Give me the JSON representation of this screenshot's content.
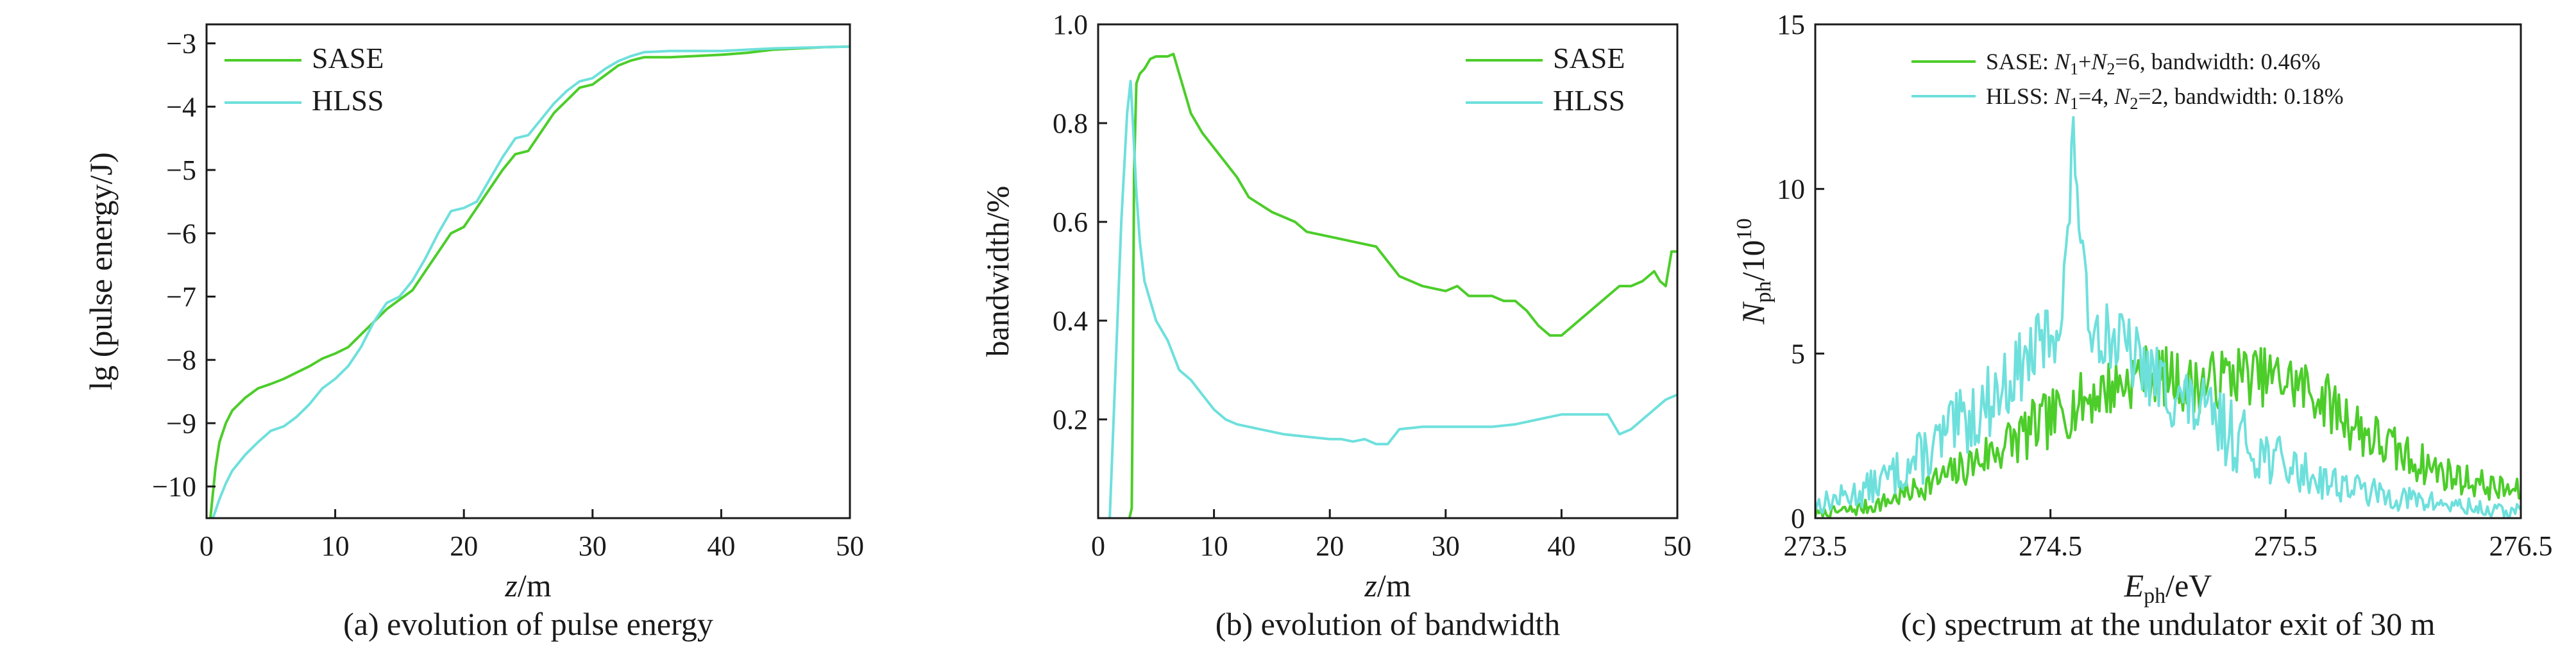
{
  "colors": {
    "sase": "#4ccd2a",
    "hlss": "#6ee0dc",
    "axis": "#1a1a1a"
  },
  "chart_data": [
    {
      "type": "line",
      "caption": "(a) evolution of pulse energy",
      "xlabel_italic": "z",
      "xlabel_unit": "/m",
      "ylabel": "lg (pulse energy/J)",
      "xlim": [
        0,
        50
      ],
      "ylim": [
        -10.5,
        -2.7
      ],
      "xticks": [
        0,
        10,
        20,
        30,
        40,
        50
      ],
      "yticks": [
        -10,
        -9,
        -8,
        -7,
        -6,
        -5,
        -4,
        -3
      ],
      "yticklabels": [
        "−10",
        "−9",
        "−8",
        "−7",
        "−6",
        "−5",
        "−4",
        "−3"
      ],
      "legend_position": "top-left",
      "series": [
        {
          "name": "SASE",
          "color": "sase",
          "x": [
            0.3,
            0.7,
            1,
            1.5,
            2,
            3,
            4,
            5,
            6,
            7,
            8,
            9,
            10,
            11,
            12,
            13,
            14,
            15,
            16,
            17,
            18,
            19,
            20,
            21,
            22,
            23,
            24,
            25,
            26,
            27,
            28,
            29,
            30,
            31,
            32,
            33,
            34,
            35,
            36,
            38,
            40,
            42,
            44,
            46,
            48,
            50
          ],
          "y": [
            -10.5,
            -9.7,
            -9.3,
            -9.0,
            -8.8,
            -8.6,
            -8.45,
            -8.38,
            -8.3,
            -8.2,
            -8.1,
            -7.98,
            -7.9,
            -7.8,
            -7.6,
            -7.4,
            -7.2,
            -7.05,
            -6.9,
            -6.6,
            -6.3,
            -6.0,
            -5.9,
            -5.6,
            -5.3,
            -5.0,
            -4.75,
            -4.7,
            -4.4,
            -4.1,
            -3.9,
            -3.7,
            -3.65,
            -3.5,
            -3.35,
            -3.27,
            -3.22,
            -3.22,
            -3.22,
            -3.2,
            -3.18,
            -3.15,
            -3.1,
            -3.08,
            -3.06,
            -3.05
          ]
        },
        {
          "name": "HLSS",
          "color": "hlss",
          "x": [
            0.5,
            1,
            1.5,
            2,
            3,
            4,
            5,
            6,
            7,
            8,
            9,
            10,
            11,
            12,
            13,
            14,
            15,
            16,
            17,
            18,
            19,
            20,
            21,
            22,
            23,
            24,
            25,
            26,
            27,
            28,
            29,
            30,
            31,
            32,
            33,
            34,
            36,
            38,
            40,
            42,
            44,
            46,
            48,
            50
          ],
          "y": [
            -10.5,
            -10.2,
            -9.95,
            -9.75,
            -9.5,
            -9.3,
            -9.12,
            -9.05,
            -8.9,
            -8.7,
            -8.45,
            -8.3,
            -8.1,
            -7.8,
            -7.4,
            -7.1,
            -7.0,
            -6.75,
            -6.4,
            -6.0,
            -5.65,
            -5.6,
            -5.5,
            -5.15,
            -4.8,
            -4.5,
            -4.45,
            -4.2,
            -3.95,
            -3.75,
            -3.6,
            -3.55,
            -3.4,
            -3.28,
            -3.2,
            -3.14,
            -3.12,
            -3.12,
            -3.12,
            -3.1,
            -3.08,
            -3.07,
            -3.06,
            -3.05
          ]
        }
      ]
    },
    {
      "type": "line",
      "caption": "(b) evolution of bandwidth",
      "xlabel_italic": "z",
      "xlabel_unit": "/m",
      "ylabel": "bandwidth/%",
      "xlim": [
        0,
        50
      ],
      "ylim": [
        0,
        1.0
      ],
      "xticks": [
        0,
        10,
        20,
        30,
        40,
        50
      ],
      "yticks": [
        0.2,
        0.4,
        0.6,
        0.8,
        1.0
      ],
      "yticklabels": [
        "0.2",
        "0.4",
        "0.6",
        "0.8",
        "1.0"
      ],
      "legend_position": "top-right",
      "series": [
        {
          "name": "SASE",
          "color": "sase",
          "x": [
            2.7,
            2.9,
            3.0,
            3.1,
            3.3,
            3.6,
            4.0,
            4.5,
            5,
            6,
            6.5,
            7,
            7.5,
            8,
            9,
            10,
            11,
            12,
            13,
            15,
            17,
            18,
            20,
            22,
            24,
            25,
            26,
            28,
            30,
            31,
            32,
            34,
            35,
            36,
            37,
            38,
            39,
            40,
            41,
            42,
            43,
            44,
            45,
            46,
            47,
            48,
            48.5,
            49,
            49.5,
            50
          ],
          "y": [
            0.0,
            0.02,
            0.3,
            0.7,
            0.88,
            0.9,
            0.91,
            0.93,
            0.935,
            0.935,
            0.94,
            0.9,
            0.86,
            0.82,
            0.78,
            0.75,
            0.72,
            0.69,
            0.65,
            0.62,
            0.6,
            0.58,
            0.57,
            0.56,
            0.55,
            0.52,
            0.49,
            0.47,
            0.46,
            0.47,
            0.45,
            0.45,
            0.44,
            0.44,
            0.42,
            0.39,
            0.37,
            0.37,
            0.39,
            0.41,
            0.43,
            0.45,
            0.47,
            0.47,
            0.48,
            0.5,
            0.48,
            0.47,
            0.54,
            0.54
          ]
        },
        {
          "name": "HLSS",
          "color": "hlss",
          "x": [
            1.0,
            1.5,
            2.0,
            2.5,
            2.8,
            3.0,
            3.3,
            3.6,
            4.0,
            4.5,
            5,
            6,
            7,
            8,
            9,
            10,
            11,
            12,
            14,
            16,
            18,
            20,
            21,
            22,
            23,
            24,
            25,
            26,
            28,
            30,
            32,
            34,
            36,
            38,
            40,
            42,
            44,
            45,
            46,
            47,
            48,
            49,
            50
          ],
          "y": [
            0.0,
            0.3,
            0.6,
            0.82,
            0.885,
            0.8,
            0.66,
            0.56,
            0.48,
            0.44,
            0.4,
            0.36,
            0.3,
            0.28,
            0.25,
            0.22,
            0.2,
            0.19,
            0.18,
            0.17,
            0.165,
            0.16,
            0.16,
            0.155,
            0.16,
            0.15,
            0.15,
            0.18,
            0.185,
            0.185,
            0.185,
            0.185,
            0.19,
            0.2,
            0.21,
            0.21,
            0.21,
            0.17,
            0.18,
            0.2,
            0.22,
            0.24,
            0.25
          ]
        }
      ]
    },
    {
      "type": "line",
      "caption": "(c) spectrum at the undulator exit of 30 m",
      "xlabel_italic": "E",
      "xlabel_sub": "ph",
      "xlabel_unit": "/eV",
      "ylabel_italic": "N",
      "ylabel_sub": "ph",
      "ylabel_unit_base": "/10",
      "ylabel_unit_sup": "10",
      "xlim": [
        273.5,
        276.5
      ],
      "ylim": [
        0,
        15
      ],
      "xticks": [
        273.5,
        274.5,
        275.5,
        276.5
      ],
      "xticklabels": [
        "273.5",
        "274.5",
        "275.5",
        "276.5"
      ],
      "yticks": [
        0,
        5,
        10,
        15
      ],
      "legend_position": "top",
      "series": [
        {
          "name": "SASE",
          "color": "sase",
          "legend_label": {
            "pre": "SASE: ",
            "sym1": "N",
            "sub1": "1",
            "mid": "+",
            "sym2": "N",
            "sub2": "2",
            "post": "=6, bandwidth: 0.46%"
          },
          "x": [
            273.5,
            273.6,
            273.7,
            273.8,
            273.9,
            274.0,
            274.1,
            274.2,
            274.3,
            274.4,
            274.5,
            274.6,
            274.7,
            274.8,
            274.9,
            275.0,
            275.1,
            275.2,
            275.3,
            275.4,
            275.5,
            275.6,
            275.7,
            275.8,
            275.9,
            276.0,
            276.1,
            276.2,
            276.3,
            276.4,
            276.5
          ],
          "y": [
            0.1,
            0.2,
            0.3,
            0.5,
            0.8,
            1.1,
            1.4,
            1.8,
            2.2,
            2.6,
            3.0,
            3.4,
            3.8,
            4.1,
            4.4,
            4.3,
            4.0,
            4.2,
            4.4,
            4.3,
            4.2,
            3.9,
            3.4,
            2.8,
            2.3,
            1.9,
            1.6,
            1.3,
            1.1,
            0.9,
            0.8
          ],
          "noise": 0.9,
          "seed": 7
        },
        {
          "name": "HLSS",
          "color": "hlss",
          "legend_label": {
            "pre": "HLSS: ",
            "sym1": "N",
            "sub1": "1",
            "mid": "=4, ",
            "sym2": "N",
            "sub2": "2",
            "post": "=2, bandwidth: 0.18%"
          },
          "x": [
            273.5,
            273.6,
            273.7,
            273.8,
            273.9,
            274.0,
            274.1,
            274.2,
            274.3,
            274.4,
            274.5,
            274.55,
            274.6,
            274.65,
            274.7,
            274.8,
            274.9,
            275.0,
            275.1,
            275.2,
            275.3,
            275.4,
            275.5,
            275.6,
            275.7,
            275.8,
            275.9,
            276.0,
            276.1,
            276.2,
            276.3,
            276.4,
            276.5
          ],
          "y": [
            0.4,
            0.6,
            0.8,
            1.2,
            1.6,
            2.1,
            2.7,
            3.3,
            4.0,
            4.8,
            5.6,
            6.2,
            11.6,
            6.4,
            5.8,
            5.3,
            4.5,
            3.9,
            3.4,
            2.9,
            2.4,
            2.0,
            1.6,
            1.3,
            1.1,
            0.9,
            0.7,
            0.6,
            0.5,
            0.4,
            0.3,
            0.2,
            0.2
          ],
          "noise": 1.1,
          "seed": 13
        }
      ]
    }
  ]
}
